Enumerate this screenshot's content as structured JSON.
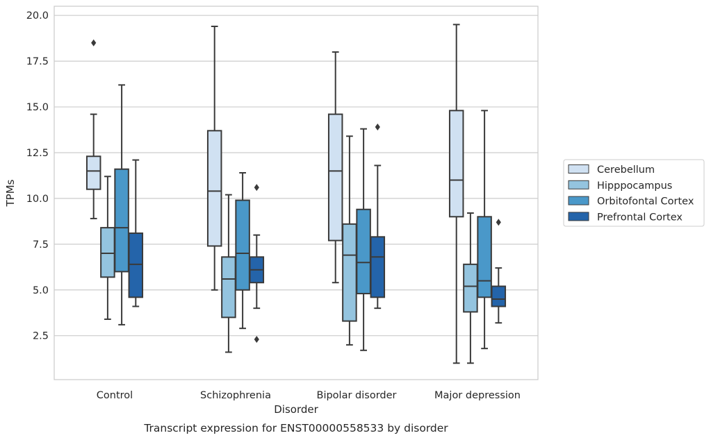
{
  "chart_data": {
    "type": "box",
    "caption": "Transcript expression for ENST00000558533 by disorder",
    "xlabel": "Disorder",
    "ylabel": "TPMs",
    "ylim": [
      0.1,
      20.5
    ],
    "yticks": [
      2.5,
      5.0,
      7.5,
      10.0,
      12.5,
      15.0,
      17.5,
      20.0
    ],
    "ytick_labels": [
      "2.5",
      "5.0",
      "7.5",
      "10.0",
      "12.5",
      "15.0",
      "17.5",
      "20.0"
    ],
    "grid": "horizontal",
    "legend_position": "outside-right",
    "categories": [
      "Control",
      "Schizophrenia",
      "Bipolar disorder",
      "Major depression"
    ],
    "series": [
      {
        "name": "Cerebellum",
        "color": "#d0e1f2",
        "boxes": [
          {
            "whisker_low": 8.9,
            "q1": 10.5,
            "median": 11.5,
            "q3": 12.3,
            "whisker_high": 14.6,
            "outliers": [
              18.5
            ]
          },
          {
            "whisker_low": 5.0,
            "q1": 7.4,
            "median": 10.4,
            "q3": 13.7,
            "whisker_high": 19.4,
            "outliers": []
          },
          {
            "whisker_low": 5.4,
            "q1": 7.7,
            "median": 11.5,
            "q3": 14.6,
            "whisker_high": 18.0,
            "outliers": []
          },
          {
            "whisker_low": 1.0,
            "q1": 9.0,
            "median": 11.0,
            "q3": 14.8,
            "whisker_high": 19.5,
            "outliers": []
          }
        ]
      },
      {
        "name": "Hipppocampus",
        "color": "#94c4df",
        "boxes": [
          {
            "whisker_low": 3.4,
            "q1": 5.7,
            "median": 7.0,
            "q3": 8.4,
            "whisker_high": 11.2,
            "outliers": []
          },
          {
            "whisker_low": 1.6,
            "q1": 3.5,
            "median": 5.6,
            "q3": 6.8,
            "whisker_high": 10.2,
            "outliers": []
          },
          {
            "whisker_low": 2.0,
            "q1": 3.3,
            "median": 6.9,
            "q3": 8.6,
            "whisker_high": 13.4,
            "outliers": []
          },
          {
            "whisker_low": 1.0,
            "q1": 3.8,
            "median": 5.2,
            "q3": 6.4,
            "whisker_high": 9.2,
            "outliers": []
          }
        ]
      },
      {
        "name": "Orbitofontal Cortex",
        "color": "#4a98c9",
        "boxes": [
          {
            "whisker_low": 3.1,
            "q1": 6.0,
            "median": 8.4,
            "q3": 11.6,
            "whisker_high": 16.2,
            "outliers": []
          },
          {
            "whisker_low": 2.9,
            "q1": 5.0,
            "median": 7.0,
            "q3": 9.9,
            "whisker_high": 11.4,
            "outliers": []
          },
          {
            "whisker_low": 1.7,
            "q1": 4.8,
            "median": 6.5,
            "q3": 9.4,
            "whisker_high": 13.8,
            "outliers": []
          },
          {
            "whisker_low": 1.8,
            "q1": 4.6,
            "median": 5.5,
            "q3": 9.0,
            "whisker_high": 14.8,
            "outliers": []
          }
        ]
      },
      {
        "name": "Prefrontal Cortex",
        "color": "#2464aa",
        "boxes": [
          {
            "whisker_low": 4.1,
            "q1": 4.6,
            "median": 6.4,
            "q3": 8.1,
            "whisker_high": 12.1,
            "outliers": []
          },
          {
            "whisker_low": 4.0,
            "q1": 5.4,
            "median": 6.1,
            "q3": 6.8,
            "whisker_high": 8.0,
            "outliers": [
              10.6,
              2.3
            ]
          },
          {
            "whisker_low": 4.0,
            "q1": 4.6,
            "median": 6.8,
            "q3": 7.9,
            "whisker_high": 11.8,
            "outliers": [
              13.9
            ]
          },
          {
            "whisker_low": 3.2,
            "q1": 4.1,
            "median": 4.5,
            "q3": 5.2,
            "whisker_high": 6.2,
            "outliers": [
              8.7
            ]
          }
        ]
      }
    ]
  }
}
